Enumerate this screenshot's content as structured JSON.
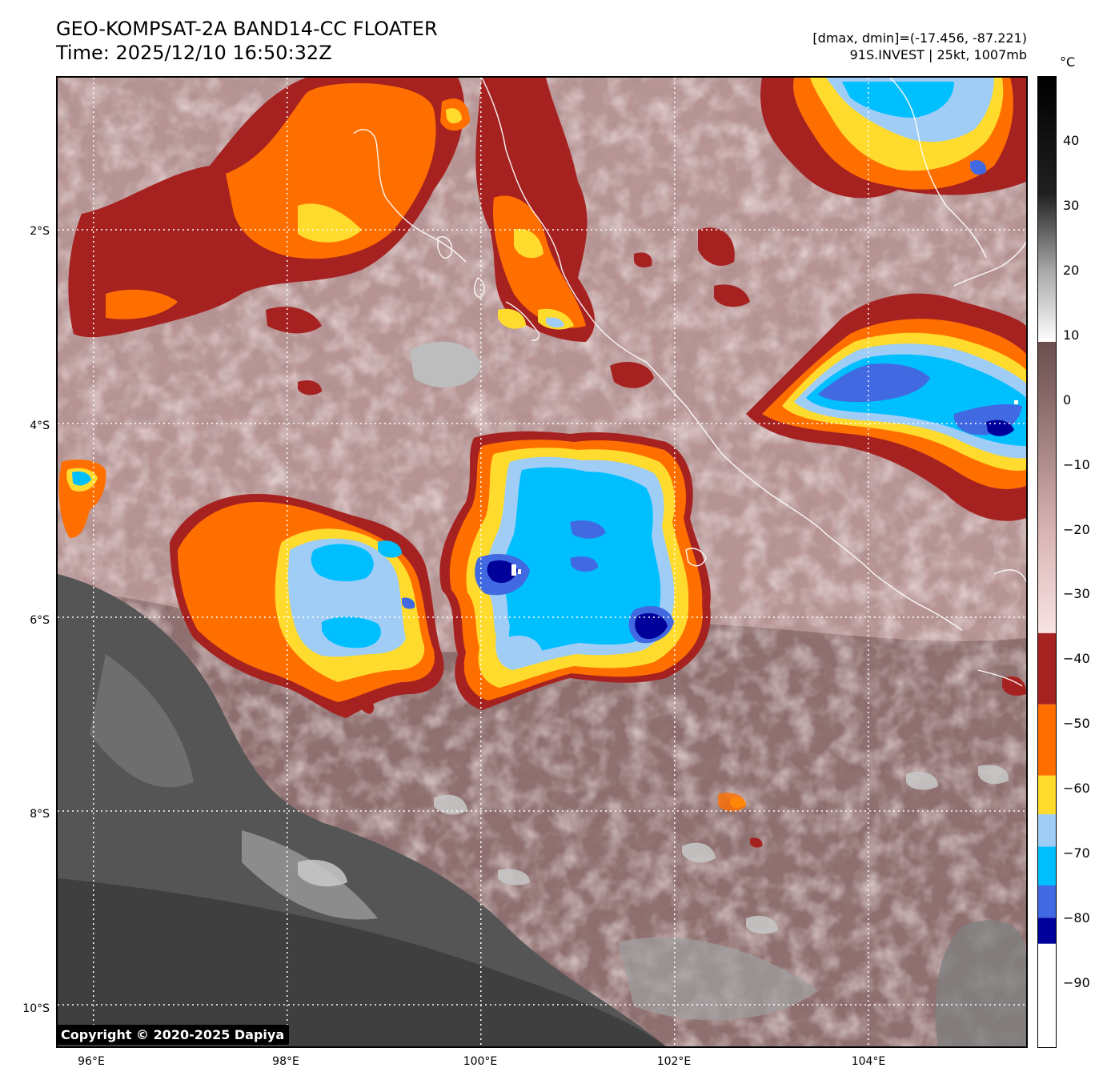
{
  "title": {
    "line1": "GEO-KOMPSAT-2A BAND14-CC FLOATER",
    "line2": "Time: 2025/12/10 16:50:32Z"
  },
  "info": {
    "line1": "[dmax, dmin]=(-17.456, -87.221)",
    "line2": "91S.INVEST | 25kt, 1007mb"
  },
  "map": {
    "lat_labels": [
      "2°S",
      "4°S",
      "6°S",
      "8°S",
      "10°S"
    ],
    "lon_labels": [
      "96°E",
      "98°E",
      "100°E",
      "102°E",
      "104°E"
    ],
    "lon_range": [
      95.63,
      105.63
    ],
    "lat_range": [
      -0.43,
      -10.43
    ],
    "grid": true,
    "coastline_color": "#ffffff"
  },
  "colorbar": {
    "unit": "°C",
    "tick_labels": [
      "40",
      "30",
      "20",
      "10",
      "0",
      "−10",
      "−20",
      "−30",
      "−40",
      "−50",
      "−60",
      "−70",
      "−80",
      "−90"
    ],
    "tick_values": [
      40,
      30,
      20,
      10,
      0,
      -10,
      -20,
      -30,
      -40,
      -50,
      -60,
      -70,
      -80,
      -90
    ],
    "range": [
      -100,
      50
    ],
    "bands": [
      {
        "from": -100,
        "to": -84,
        "color": "#ffffff"
      },
      {
        "from": -84,
        "to": -80,
        "color": "#00009a"
      },
      {
        "from": -80,
        "to": -75,
        "color": "#4169e1"
      },
      {
        "from": -75,
        "to": -69,
        "color": "#00bfff"
      },
      {
        "from": -69,
        "to": -64,
        "color": "#9fcdf5"
      },
      {
        "from": -64,
        "to": -58,
        "color": "#ffdb2d"
      },
      {
        "from": -58,
        "to": -47,
        "color": "#ff6f00"
      },
      {
        "from": -47,
        "to": -36,
        "color": "#a62221"
      }
    ],
    "gradient_stops": [
      {
        "value": -36,
        "color": "#f8e3e3"
      },
      {
        "value": -20,
        "color": "#d9b3b3"
      },
      {
        "value": 0,
        "color": "#8a6a6a"
      },
      {
        "value": 9,
        "color": "#6b4f4f"
      },
      {
        "value": 9.01,
        "color": "#ffffff"
      },
      {
        "value": 20,
        "color": "#a8a8a8"
      },
      {
        "value": 32,
        "color": "#202020"
      },
      {
        "value": 50,
        "color": "#000000"
      }
    ]
  },
  "copyright": "Copyright © 2020-2025 Dapiya"
}
